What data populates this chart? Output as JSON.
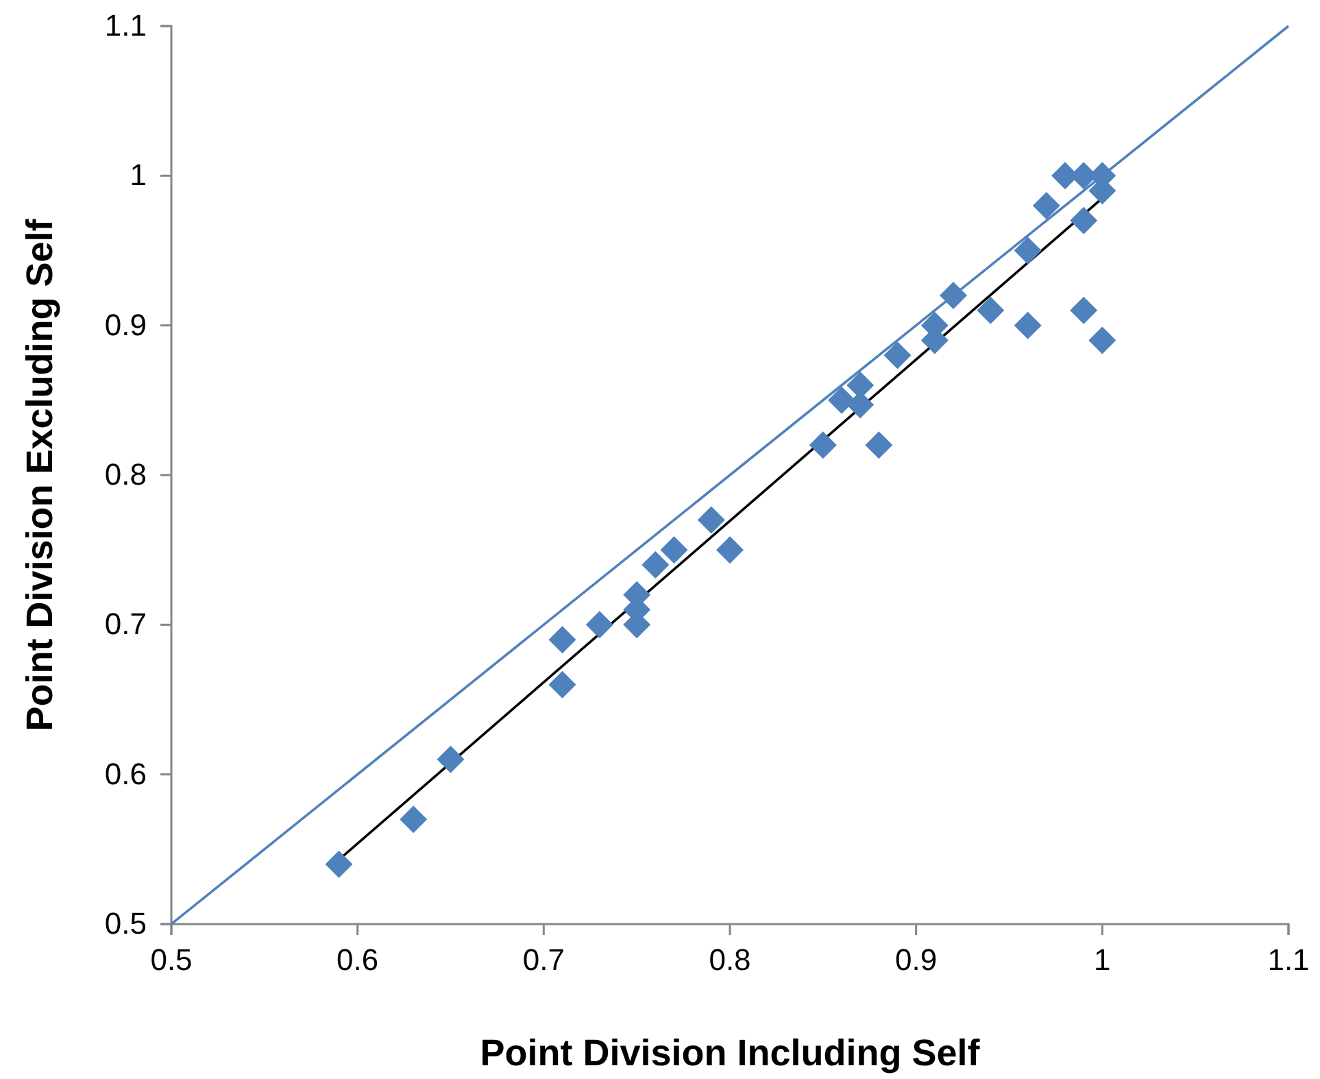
{
  "chart_data": {
    "type": "scatter",
    "xlabel": "Point Division Including Self",
    "ylabel": "Point Division Excluding Self",
    "xlim": [
      0.5,
      1.1
    ],
    "ylim": [
      0.5,
      1.1
    ],
    "xticks": [
      0.5,
      0.6,
      0.7,
      0.8,
      0.9,
      1,
      1.1
    ],
    "yticks": [
      0.5,
      0.6,
      0.7,
      0.8,
      0.9,
      1,
      1.1
    ],
    "grid": false,
    "marker": "diamond",
    "series": [
      {
        "color": "#4f81bd",
        "x": [
          0.59,
          0.63,
          0.65,
          0.71,
          0.71,
          0.73,
          0.75,
          0.75,
          0.75,
          0.76,
          0.77,
          0.79,
          0.8,
          0.85,
          0.86,
          0.87,
          0.87,
          0.88,
          0.89,
          0.91,
          0.91,
          0.92,
          0.94,
          0.96,
          0.96,
          0.97,
          0.98,
          0.99,
          0.99,
          0.99,
          1,
          1,
          1
        ],
        "values": [
          0.54,
          0.57,
          0.61,
          0.69,
          0.66,
          0.7,
          0.72,
          0.71,
          0.7,
          0.74,
          0.75,
          0.77,
          0.75,
          0.82,
          0.85,
          0.86,
          0.847,
          0.82,
          0.88,
          0.9,
          0.89,
          0.92,
          0.91,
          0.95,
          0.9,
          0.98,
          1,
          1,
          0.97,
          0.91,
          1,
          0.99,
          0.89
        ]
      },
      {
        "type": "line",
        "color": "#4f81bd",
        "marker": "none",
        "x": [
          0.5,
          1.1
        ],
        "values": [
          0.5,
          1.1
        ]
      },
      {
        "type": "line",
        "color": "#000000",
        "marker": "none",
        "x": [
          0.59,
          1
        ],
        "values": [
          0.543,
          0.985
        ]
      }
    ]
  }
}
